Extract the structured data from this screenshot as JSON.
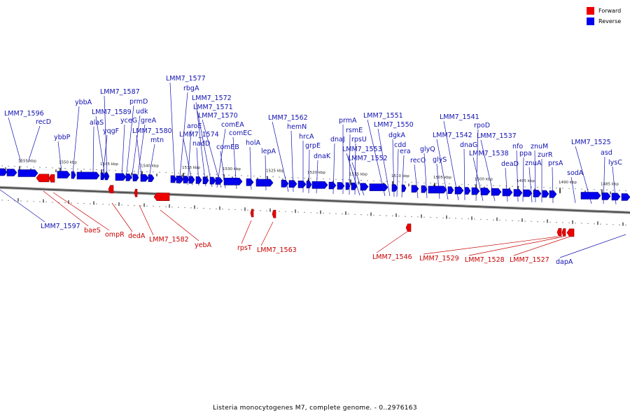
{
  "legend": {
    "forward_label": "Forward",
    "reverse_label": "Reverse",
    "forward_color": "#ee0000",
    "reverse_color": "#0000ee"
  },
  "caption": "Listeria monocytogenes M7, complete genome. - 0..2976163",
  "ticks": [
    "1555 kbp",
    "1550 kbp",
    "1545 kbp",
    "1540 kbp",
    "1535 kbp",
    "1530 kbp",
    "1525 kbp",
    "1520 kbp",
    "1515 kbp",
    "1510 kbp",
    "1505 kbp",
    "1500 kbp",
    "1495 kbp",
    "1490 kbp",
    "1485 kbp"
  ],
  "reverse_genes": [
    "LMM7_1596",
    "recD",
    "ybbP",
    "ybbA",
    "alaS",
    "yqgF",
    "LMM7_1589",
    "LMM7_1587",
    "yceG",
    "prmD",
    "udk",
    "greA",
    "LMM7_1580",
    "mtn",
    "LMM7_1577",
    "rbgA",
    "aroE",
    "LMM7_1574",
    "nadD",
    "LMM7_1572",
    "LMM7_1571",
    "comEA",
    "LMM7_1570",
    "comEB",
    "comEC",
    "holA",
    "lepA",
    "LMM7_1562",
    "hemN",
    "hrcA",
    "grpE",
    "dnaK",
    "dnaJ",
    "prmA",
    "rsmE",
    "rpsU",
    "LMM7_1553",
    "LMM7_1552",
    "LMM7_1551",
    "LMM7_1550",
    "dgkA",
    "cdd",
    "era",
    "recO",
    "glyQ",
    "glyS",
    "LMM7_1542",
    "LMM7_1541",
    "dnaG",
    "rpoD",
    "LMM7_1538",
    "LMM7_1537",
    "deaD",
    "nfo",
    "ppa",
    "znuA",
    "znuM",
    "zurR",
    "prsA",
    "sodA",
    "LMM7_1525",
    "asd",
    "lysC",
    "LMM7_1597",
    "dapA"
  ],
  "forward_genes": [
    "baeS",
    "ompR",
    "dedA",
    "LMM7_1582",
    "yebA",
    "rpsT",
    "LMM7_1563",
    "LMM7_1546",
    "LMM7_1529",
    "LMM7_1528",
    "LMM7_1527"
  ]
}
